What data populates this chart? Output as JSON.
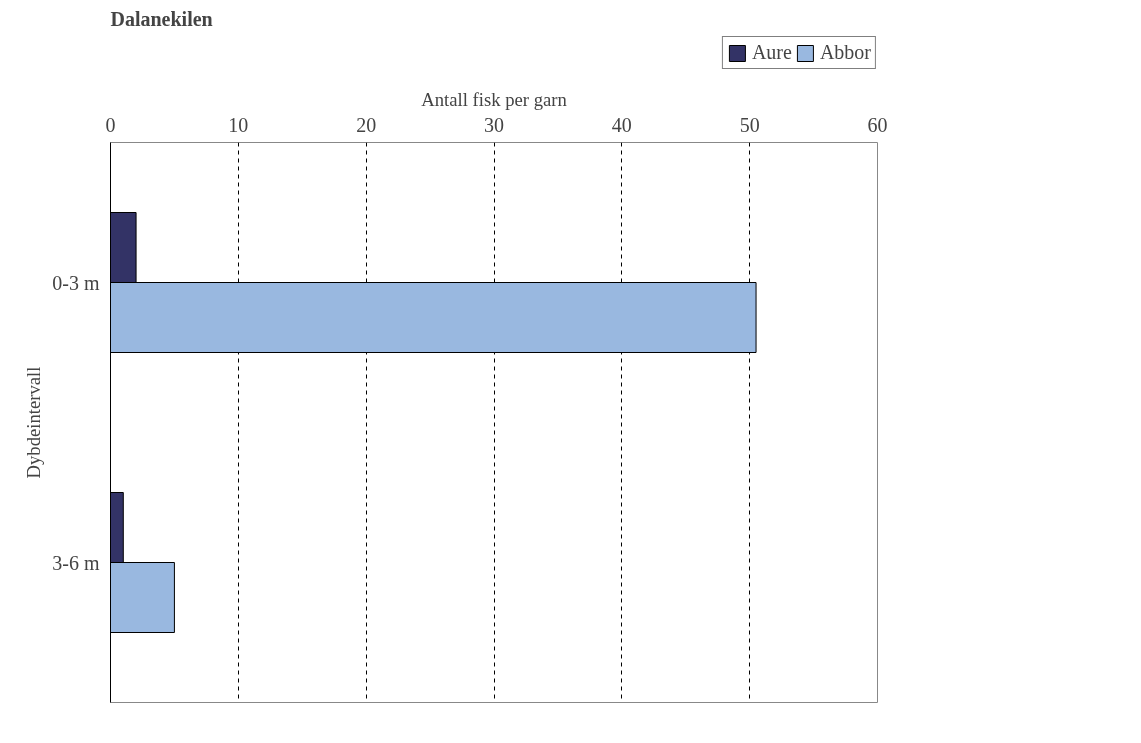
{
  "chart_data": {
    "type": "bar",
    "orientation": "horizontal",
    "title": "Dalanekilen",
    "xlabel": "Antall fisk per garn",
    "ylabel": "Dybdeintervall",
    "categories": [
      "0-3 m",
      "3-6 m"
    ],
    "series": [
      {
        "name": "Aure",
        "color": "#333366",
        "values": [
          2,
          1
        ]
      },
      {
        "name": "Abbor",
        "color": "#99b8e0",
        "values": [
          50.5,
          5
        ]
      }
    ],
    "xlim": [
      0,
      60
    ],
    "xticks": [
      0,
      10,
      20,
      30,
      40,
      50,
      60
    ],
    "grid": "x",
    "legend": "top right"
  }
}
